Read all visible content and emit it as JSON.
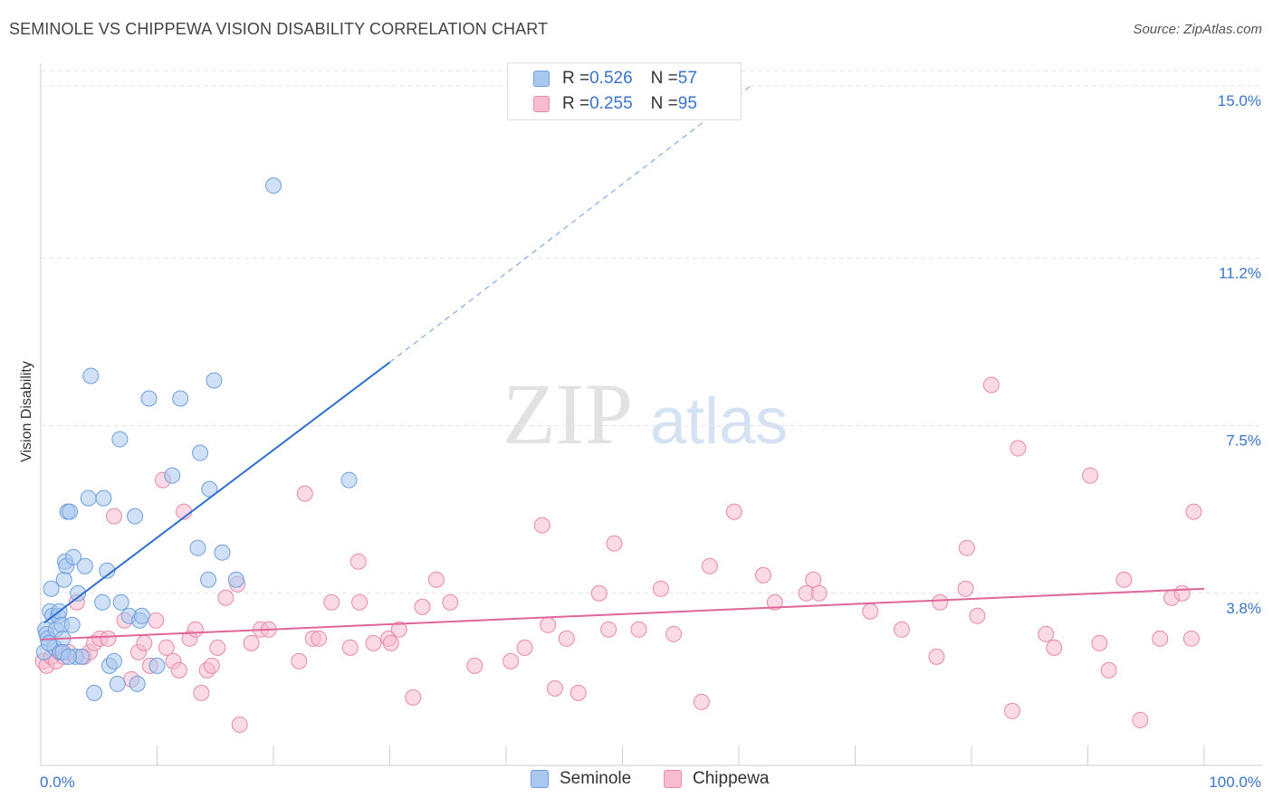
{
  "header": {
    "title": "SEMINOLE VS CHIPPEWA VISION DISABILITY CORRELATION CHART",
    "source": "Source: ZipAtlas.com"
  },
  "legend_top": {
    "row1": {
      "r_label": "R = ",
      "r_value": "0.526",
      "n_label": "N = ",
      "n_value": "57"
    },
    "row2": {
      "r_label": "R = ",
      "r_value": "0.255",
      "n_label": "N = ",
      "n_value": "95"
    }
  },
  "legend_bottom": {
    "series1": "Seminole",
    "series2": "Chippewa"
  },
  "watermark": {
    "part1": "ZIP",
    "part2": "atlas"
  },
  "colors": {
    "seminole_fill": "#a9c8f0",
    "seminole_stroke": "#6f9fdc",
    "seminole_line": "#2f6fd0",
    "chippewa_fill": "#f7bcd0",
    "chippewa_stroke": "#e58aa9",
    "chippewa_line": "#e0669a",
    "tick_label": "#3a74c8",
    "grid": "#e3e3e3"
  },
  "chart_data": {
    "type": "scatter",
    "title": "SEMINOLE VS CHIPPEWA VISION DISABILITY CORRELATION CHART",
    "xlabel": "",
    "ylabel": "Vision Disability",
    "xlim": [
      0,
      100
    ],
    "ylim": [
      0,
      15.5
    ],
    "x_tick_labels": [
      {
        "value": 0,
        "label": "0.0%"
      },
      {
        "value": 100,
        "label": "100.0%"
      }
    ],
    "y_ticks": [
      {
        "value": 3.8,
        "label": "3.8%"
      },
      {
        "value": 7.5,
        "label": "7.5%"
      },
      {
        "value": 11.2,
        "label": "11.2%"
      },
      {
        "value": 15.0,
        "label": "15.0%"
      }
    ],
    "grid": true,
    "legend_position": "top-center",
    "series": [
      {
        "name": "Seminole",
        "R": 0.526,
        "N": 57,
        "trend": {
          "x0": 0.3,
          "y0": 3.15,
          "x1": 30,
          "y1": 8.9,
          "dashed_to_x": 61,
          "dashed_to_y": 15.0
        },
        "points": [
          [
            0.3,
            2.5
          ],
          [
            0.4,
            3.0
          ],
          [
            0.5,
            2.9
          ],
          [
            0.6,
            2.8
          ],
          [
            0.8,
            3.4
          ],
          [
            0.9,
            3.9
          ],
          [
            1.0,
            3.3
          ],
          [
            1.2,
            2.6
          ],
          [
            1.3,
            3.0
          ],
          [
            1.5,
            3.3
          ],
          [
            1.6,
            3.4
          ],
          [
            1.7,
            2.5
          ],
          [
            1.8,
            3.1
          ],
          [
            1.9,
            2.8
          ],
          [
            2.0,
            4.1
          ],
          [
            2.1,
            4.5
          ],
          [
            2.2,
            4.4
          ],
          [
            2.3,
            5.6
          ],
          [
            2.5,
            5.6
          ],
          [
            2.7,
            3.1
          ],
          [
            2.8,
            4.6
          ],
          [
            3.0,
            2.4
          ],
          [
            3.2,
            3.8
          ],
          [
            3.5,
            2.4
          ],
          [
            3.8,
            4.4
          ],
          [
            4.1,
            5.9
          ],
          [
            4.3,
            8.6
          ],
          [
            4.6,
            1.6
          ],
          [
            5.3,
            3.6
          ],
          [
            5.4,
            5.9
          ],
          [
            5.7,
            4.3
          ],
          [
            5.9,
            2.2
          ],
          [
            6.3,
            2.3
          ],
          [
            6.6,
            1.8
          ],
          [
            6.8,
            7.2
          ],
          [
            6.9,
            3.6
          ],
          [
            7.6,
            3.3
          ],
          [
            8.1,
            5.5
          ],
          [
            8.3,
            1.8
          ],
          [
            8.5,
            3.2
          ],
          [
            8.7,
            3.3
          ],
          [
            9.3,
            8.1
          ],
          [
            10.0,
            2.2
          ],
          [
            11.3,
            6.4
          ],
          [
            12.0,
            8.1
          ],
          [
            13.5,
            4.8
          ],
          [
            13.7,
            6.9
          ],
          [
            14.4,
            4.1
          ],
          [
            14.5,
            6.1
          ],
          [
            14.9,
            8.5
          ],
          [
            15.6,
            4.7
          ],
          [
            16.8,
            4.1
          ],
          [
            20.0,
            12.8
          ],
          [
            26.5,
            6.3
          ],
          [
            1.9,
            2.5
          ],
          [
            0.7,
            2.7
          ],
          [
            2.4,
            2.4
          ]
        ]
      },
      {
        "name": "Chippewa",
        "R": 0.255,
        "N": 95,
        "trend": {
          "x0": 0,
          "y0": 2.78,
          "x1": 100,
          "y1": 3.9
        },
        "points": [
          [
            0.2,
            2.3
          ],
          [
            0.5,
            2.2
          ],
          [
            0.9,
            2.4
          ],
          [
            1.3,
            2.3
          ],
          [
            1.6,
            2.5
          ],
          [
            2.0,
            2.4
          ],
          [
            2.4,
            2.5
          ],
          [
            3.1,
            3.6
          ],
          [
            3.7,
            2.4
          ],
          [
            4.2,
            2.5
          ],
          [
            4.6,
            2.7
          ],
          [
            5.1,
            2.8
          ],
          [
            5.8,
            2.8
          ],
          [
            6.3,
            5.5
          ],
          [
            7.2,
            3.2
          ],
          [
            7.8,
            1.9
          ],
          [
            8.4,
            2.5
          ],
          [
            8.9,
            2.7
          ],
          [
            9.4,
            2.2
          ],
          [
            9.9,
            3.2
          ],
          [
            10.5,
            6.3
          ],
          [
            10.8,
            2.6
          ],
          [
            11.4,
            2.3
          ],
          [
            11.9,
            2.1
          ],
          [
            12.3,
            5.6
          ],
          [
            12.8,
            2.8
          ],
          [
            13.3,
            3.0
          ],
          [
            13.8,
            1.6
          ],
          [
            14.3,
            2.1
          ],
          [
            14.7,
            2.2
          ],
          [
            15.2,
            2.6
          ],
          [
            15.9,
            3.7
          ],
          [
            16.9,
            4.0
          ],
          [
            17.1,
            0.9
          ],
          [
            18.1,
            2.7
          ],
          [
            18.9,
            3.0
          ],
          [
            19.6,
            3.0
          ],
          [
            22.2,
            2.3
          ],
          [
            22.7,
            6.0
          ],
          [
            23.4,
            2.8
          ],
          [
            23.9,
            2.8
          ],
          [
            25.0,
            3.6
          ],
          [
            26.6,
            2.6
          ],
          [
            27.3,
            4.5
          ],
          [
            27.4,
            3.6
          ],
          [
            28.6,
            2.7
          ],
          [
            29.9,
            2.8
          ],
          [
            30.1,
            2.7
          ],
          [
            30.8,
            3.0
          ],
          [
            32.0,
            1.5
          ],
          [
            32.8,
            3.5
          ],
          [
            34.0,
            4.1
          ],
          [
            35.2,
            3.6
          ],
          [
            37.3,
            2.2
          ],
          [
            40.4,
            2.3
          ],
          [
            41.6,
            2.6
          ],
          [
            43.1,
            5.3
          ],
          [
            43.6,
            3.1
          ],
          [
            44.2,
            1.7
          ],
          [
            45.2,
            2.8
          ],
          [
            46.2,
            1.6
          ],
          [
            48.0,
            3.8
          ],
          [
            48.8,
            3.0
          ],
          [
            49.3,
            4.9
          ],
          [
            51.4,
            3.0
          ],
          [
            53.3,
            3.9
          ],
          [
            54.4,
            2.9
          ],
          [
            56.8,
            1.4
          ],
          [
            57.5,
            4.4
          ],
          [
            59.6,
            5.6
          ],
          [
            62.1,
            4.2
          ],
          [
            63.1,
            3.6
          ],
          [
            65.8,
            3.8
          ],
          [
            66.4,
            4.1
          ],
          [
            66.9,
            3.8
          ],
          [
            71.3,
            3.4
          ],
          [
            74.0,
            3.0
          ],
          [
            77.0,
            2.4
          ],
          [
            77.3,
            3.6
          ],
          [
            79.5,
            3.9
          ],
          [
            79.6,
            4.8
          ],
          [
            80.5,
            3.3
          ],
          [
            81.7,
            8.4
          ],
          [
            83.5,
            1.2
          ],
          [
            84.0,
            7.0
          ],
          [
            86.4,
            2.9
          ],
          [
            87.1,
            2.6
          ],
          [
            90.2,
            6.4
          ],
          [
            91.0,
            2.7
          ],
          [
            91.8,
            2.1
          ],
          [
            93.1,
            4.1
          ],
          [
            94.5,
            1.0
          ],
          [
            96.2,
            2.8
          ],
          [
            97.2,
            3.7
          ],
          [
            98.1,
            3.8
          ],
          [
            98.9,
            2.8
          ],
          [
            99.1,
            5.6
          ]
        ]
      }
    ]
  }
}
